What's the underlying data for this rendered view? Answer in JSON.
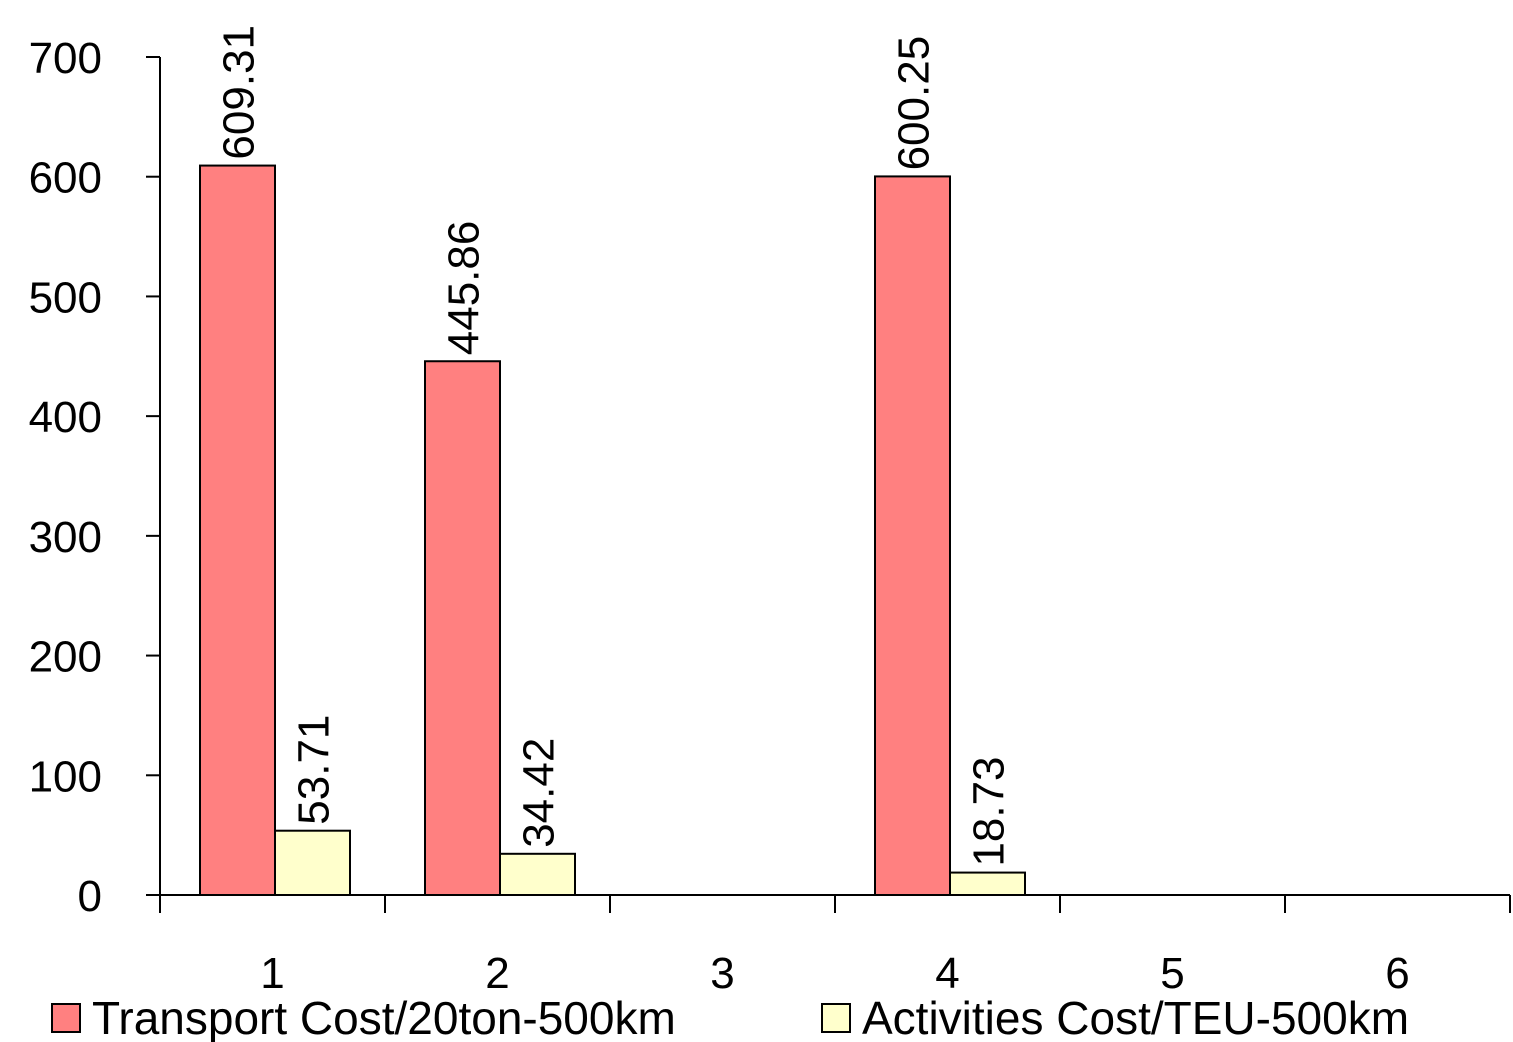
{
  "chart_data": {
    "type": "bar",
    "categories": [
      "1",
      "2",
      "3",
      "4",
      "5",
      "6"
    ],
    "series": [
      {
        "name": "Transport Cost/20ton-500km",
        "values": [
          609.31,
          445.86,
          null,
          600.25,
          null,
          null
        ],
        "labels": [
          "609.31",
          "445.86",
          "",
          "600.25",
          "",
          ""
        ],
        "color": "#ff8080"
      },
      {
        "name": "Activities Cost/TEU-500km",
        "values": [
          53.71,
          34.42,
          null,
          18.73,
          null,
          null
        ],
        "labels": [
          "53.71",
          "34.42",
          "",
          "18.73",
          "",
          ""
        ],
        "color": "#ffffcc"
      }
    ],
    "yticks": [
      "0",
      "100",
      "200",
      "300",
      "400",
      "500",
      "600",
      "700"
    ],
    "ylim": [
      0,
      700
    ],
    "grid": false,
    "legend_position": "bottom",
    "data_label_rotation": "vertical"
  }
}
